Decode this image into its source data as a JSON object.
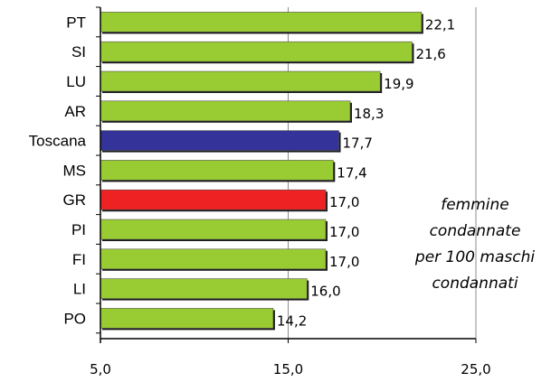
{
  "chart_data": {
    "type": "bar",
    "orientation": "horizontal",
    "categories": [
      "PT",
      "SI",
      "LU",
      "AR",
      "Toscana",
      "MS",
      "GR",
      "PI",
      "FI",
      "LI",
      "PO"
    ],
    "values": [
      22.1,
      21.6,
      19.9,
      18.3,
      17.7,
      17.4,
      17.0,
      17.0,
      17.0,
      16.0,
      14.2
    ],
    "value_labels": [
      "22,1",
      "21,6",
      "19,9",
      "18,3",
      "17,7",
      "17,4",
      "17,0",
      "17,0",
      "17,0",
      "16,0",
      "14,2"
    ],
    "bar_colors": [
      "#99cc33",
      "#99cc33",
      "#99cc33",
      "#99cc33",
      "#333399",
      "#99cc33",
      "#ee2222",
      "#99cc33",
      "#99cc33",
      "#99cc33",
      "#99cc33"
    ],
    "xlim": [
      5.0,
      25.0
    ],
    "xticks": [
      5.0,
      15.0,
      25.0
    ],
    "xtick_labels": [
      "5,0",
      "15,0",
      "25,0"
    ],
    "grid": "vertical",
    "annotation": [
      "femmine",
      "condannate",
      "per 100 maschi",
      "condannati"
    ]
  }
}
